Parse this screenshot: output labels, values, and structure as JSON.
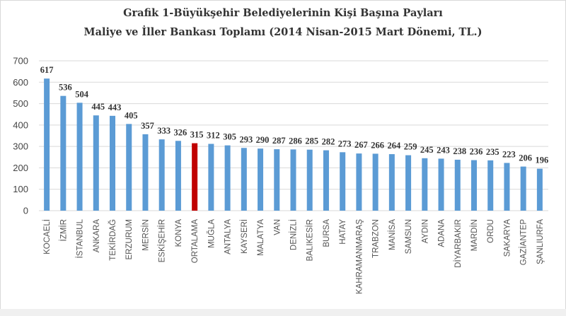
{
  "chart_data": {
    "type": "bar",
    "title": "Grafik 1-Büyükşehir Belediyelerinin Kişi Başına Payları",
    "subtitle": "Maliye ve İller Bankası Toplamı (2014 Nisan-2015 Mart Dönemi, TL.)",
    "xlabel": "",
    "ylabel": "",
    "ylim": [
      0,
      700
    ],
    "yticks": [
      0,
      100,
      200,
      300,
      400,
      500,
      600,
      700
    ],
    "grid": true,
    "categories": [
      "KOCAELİ",
      "İZMİR",
      "İSTANBUL",
      "ANKARA",
      "TEKİRDAĞ",
      "ERZURUM",
      "MERSİN",
      "ESKİŞEHİR",
      "KONYA",
      "ORTALAMA",
      "MUĞLA",
      "ANTALYA",
      "KAYSERİ",
      "MALATYA",
      "VAN",
      "DENİZLİ",
      "BALIKESİR",
      "BURSA",
      "HATAY",
      "KAHRAMANMARAŞ",
      "TRABZON",
      "MANİSA",
      "SAMSUN",
      "AYDIN",
      "ADANA",
      "DİYARBAKIR",
      "MARDİN",
      "ORDU",
      "SAKARYA",
      "GAZİANTEP",
      "ŞANLIURFA"
    ],
    "values": [
      617,
      536,
      504,
      445,
      443,
      405,
      357,
      333,
      326,
      315,
      312,
      305,
      293,
      290,
      287,
      286,
      285,
      282,
      273,
      267,
      266,
      264,
      259,
      245,
      243,
      238,
      236,
      235,
      223,
      206,
      196
    ],
    "highlight_category": "ORTALAMA",
    "colors": {
      "bar": "#5b9bd5",
      "highlight": "#c00000",
      "grid": "#d9d9d9"
    }
  }
}
